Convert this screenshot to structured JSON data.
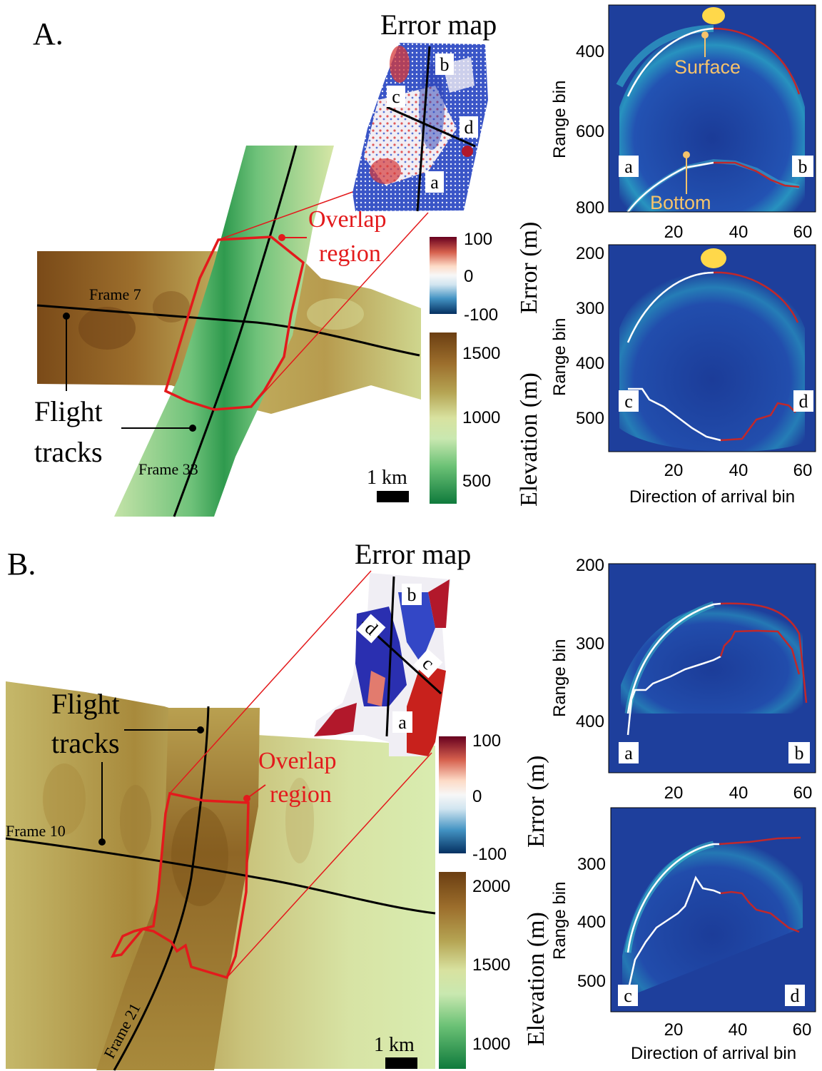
{
  "panels": [
    {
      "label": "A.",
      "error_map_title": "Error map",
      "overlap_label_line1": "Overlap",
      "overlap_label_line2": "region",
      "flight_tracks_line1": "Flight",
      "flight_tracks_line2": "tracks",
      "frame_a": "Frame 7",
      "frame_b": "Frame 33",
      "scale_label": "1 km",
      "error_colorbar": {
        "label": "Error (m)",
        "ticks": [
          "100",
          "0",
          "-100"
        ]
      },
      "elevation_colorbar": {
        "label": "Elevation (m)",
        "ticks": [
          "1500",
          "1000",
          "500"
        ]
      },
      "line_labels": [
        "a",
        "b",
        "c",
        "d"
      ],
      "echograms": [
        {
          "ylabel": "Range bin",
          "yticks": [
            "400",
            "600",
            "800"
          ],
          "xticks": [
            "20",
            "40",
            "60"
          ],
          "xlabel": "",
          "corner_left": "a",
          "corner_right": "b",
          "annotations": [
            "Surface",
            "Bottom"
          ]
        },
        {
          "ylabel": "Range bin",
          "yticks": [
            "200",
            "300",
            "400",
            "500"
          ],
          "xticks": [
            "20",
            "40",
            "60"
          ],
          "xlabel": "Direction of arrival bin",
          "corner_left": "c",
          "corner_right": "d",
          "annotations": []
        }
      ]
    },
    {
      "label": "B.",
      "error_map_title": "Error map",
      "overlap_label_line1": "Overlap",
      "overlap_label_line2": "region",
      "flight_tracks_line1": "Flight",
      "flight_tracks_line2": "tracks",
      "frame_a": "Frame 10",
      "frame_b": "Frame 21",
      "scale_label": "1 km",
      "error_colorbar": {
        "label": "Error (m)",
        "ticks": [
          "100",
          "0",
          "-100"
        ]
      },
      "elevation_colorbar": {
        "label": "Elevation (m)",
        "ticks": [
          "2000",
          "1500",
          "1000"
        ]
      },
      "line_labels": [
        "a",
        "b",
        "c",
        "d"
      ],
      "echograms": [
        {
          "ylabel": "Range bin",
          "yticks": [
            "200",
            "300",
            "400"
          ],
          "xticks": [
            "20",
            "40",
            "60"
          ],
          "xlabel": "",
          "corner_left": "a",
          "corner_right": "b",
          "annotations": []
        },
        {
          "ylabel": "Range bin",
          "yticks": [
            "300",
            "400",
            "500"
          ],
          "xticks": [
            "20",
            "40",
            "60"
          ],
          "xlabel": "Direction of arrival bin",
          "corner_left": "c",
          "corner_right": "d",
          "annotations": []
        }
      ]
    }
  ],
  "colors": {
    "overlap": "#e31a1c",
    "annotation_marker": "#f5c36b",
    "echogram_background": "#1e3f9c",
    "track": "#000000"
  }
}
